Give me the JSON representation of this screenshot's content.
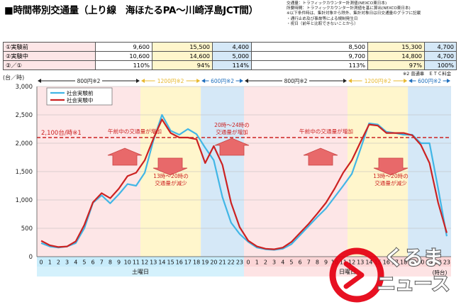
{
  "title": "■時間帯別交通量（上り線　海ほたるPA～川崎浮島JCT間）",
  "notes": [
    "交通量：トラフィックカウンター計測値(NEXCO東日本)",
    "所要時間：トラフィックカウンター計測値を基に算出(NEXCO東日本)",
    "※以下条件時は、集計対象から除外、集計対象日は日交通量のグラフに記載",
    "・通行止め及び事故等による規制発生日",
    "・祝日（前年と比較できないことから）"
  ],
  "summary": {
    "columns": [
      {
        "w": 130,
        "bg": ""
      },
      {
        "w": 80,
        "bg": ""
      },
      {
        "w": 85,
        "bg": "y"
      },
      {
        "w": 55,
        "bg": "b"
      },
      {
        "w": 164,
        "bg": ""
      },
      {
        "w": 80,
        "bg": "y"
      },
      {
        "w": 45,
        "bg": "b"
      }
    ],
    "rows": [
      [
        "①実験前",
        "9,600",
        "15,500",
        "4,400",
        "8,500",
        "15,300",
        "4,700"
      ],
      [
        "②実験中",
        "10,600",
        "14,600",
        "5,000",
        "9,700",
        "14,800",
        "4,700"
      ],
      [
        "②／①",
        "110%",
        "94%",
        "114%",
        "113%",
        "97%",
        "100%"
      ]
    ]
  },
  "chart_data": {
    "type": "line",
    "ylabel": "(台／時)",
    "ylim": [
      0,
      3000
    ],
    "yticks": [
      "0",
      "500",
      "1,000",
      "1,500",
      "2,000",
      "2,500",
      "3,000"
    ],
    "x": [
      "0",
      "1",
      "2",
      "3",
      "4",
      "5",
      "6",
      "7",
      "8",
      "9",
      "10",
      "11",
      "12",
      "13",
      "14",
      "15",
      "16",
      "17",
      "18",
      "19",
      "20",
      "21",
      "22",
      "23",
      "0",
      "1",
      "2",
      "3",
      "4",
      "5",
      "6",
      "7",
      "8",
      "9",
      "10",
      "11",
      "12",
      "13",
      "14",
      "15",
      "16",
      "17",
      "18",
      "19",
      "20",
      "21",
      "22",
      "23"
    ],
    "day_labels": [
      "土曜日",
      "日曜日",
      "(時台)"
    ],
    "legend": [
      "社会実験前",
      "社会実験中"
    ],
    "series": [
      {
        "name": "社会実験前",
        "color": "#41b6e6",
        "values": [
          240,
          180,
          160,
          180,
          240,
          500,
          950,
          1080,
          940,
          1100,
          1280,
          1250,
          1480,
          2050,
          2500,
          2220,
          2150,
          2250,
          2160,
          1920,
          1700,
          1050,
          600,
          400,
          260,
          160,
          130,
          120,
          140,
          220,
          380,
          540,
          700,
          850,
          1050,
          1250,
          1460,
          1900,
          2350,
          2330,
          2200,
          2180,
          2150,
          2150,
          2000,
          2000,
          1200,
          360
        ]
      },
      {
        "name": "社会実験中",
        "color": "#cc2222",
        "values": [
          280,
          200,
          170,
          180,
          270,
          560,
          960,
          1120,
          1030,
          1200,
          1420,
          1480,
          1700,
          2080,
          2420,
          2180,
          2100,
          2100,
          2070,
          1650,
          1950,
          1620,
          950,
          520,
          280,
          180,
          140,
          130,
          160,
          260,
          420,
          580,
          760,
          950,
          1200,
          1480,
          1700,
          2020,
          2330,
          2310,
          2180,
          2180,
          2180,
          2140,
          1970,
          1650,
          950,
          420
        ]
      }
    ],
    "reference": {
      "value": 2100,
      "label": "2,100台/時※1",
      "color": "#cc2222"
    },
    "fare_bands": [
      {
        "label": "800円※2",
        "color": "pink",
        "from": 0,
        "to": 12
      },
      {
        "label": "1200円※2",
        "color": "yellow",
        "from": 12,
        "to": 19
      },
      {
        "label": "600円※2",
        "color": "blue",
        "from": 19,
        "to": 24
      },
      {
        "label": "800円※2",
        "color": "pink",
        "from": 24,
        "to": 36
      },
      {
        "label": "1200円※2",
        "color": "yellow",
        "from": 36,
        "to": 43
      },
      {
        "label": "600円※2",
        "color": "blue",
        "from": 43,
        "to": 48
      }
    ],
    "fare_note": "※2 普通車　ＥＴＣ料金",
    "annotations": [
      {
        "text": [
          "午前中の交通量が増加"
        ]
      },
      {
        "text": [
          "20時～24時の",
          "交通量が増加"
        ]
      },
      {
        "text": [
          "13時～20時の",
          "交通量が減少"
        ]
      },
      {
        "text": [
          "午前中の交通量が増加"
        ]
      },
      {
        "text": [
          "13時～20時の",
          "交通量が減少"
        ]
      }
    ]
  },
  "watermark": {
    "text": "くるまのニュース"
  }
}
